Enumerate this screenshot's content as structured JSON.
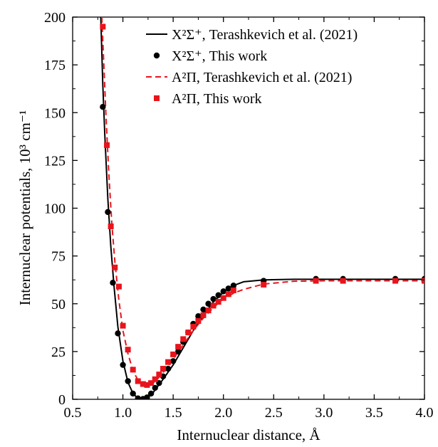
{
  "chart_data": {
    "type": "line",
    "xlabel": "Internuclear distance, Å",
    "ylabel": "Internuclear potentials, 10³ cm⁻¹",
    "xlim": [
      0.5,
      4.0
    ],
    "ylim": [
      0,
      200
    ],
    "x_ticks": [
      "0.5",
      "1.0",
      "1.5",
      "2.0",
      "2.5",
      "3.0",
      "3.5",
      "4.0"
    ],
    "y_ticks": [
      "0",
      "25",
      "50",
      "75",
      "100",
      "125",
      "150",
      "175",
      "200"
    ],
    "grid": false,
    "legend_position": "top-right",
    "colors": {
      "x_state": "#000000",
      "a_state": "#e8141c"
    },
    "series": [
      {
        "name": "X²Σ⁺, Terashkevich et al. (2021)",
        "style": "solid-line",
        "color": "#000000",
        "x": [
          0.78,
          0.8,
          0.82,
          0.85,
          0.88,
          0.91,
          0.95,
          1.0,
          1.05,
          1.1,
          1.15,
          1.2,
          1.25,
          1.3,
          1.35,
          1.4,
          1.5,
          1.6,
          1.7,
          1.8,
          1.9,
          2.0,
          2.1,
          2.2,
          2.4,
          2.7,
          3.0,
          3.5,
          4.0
        ],
        "y": [
          200,
          165,
          138,
          105,
          80,
          60,
          38,
          20,
          9,
          3,
          0.5,
          0,
          1,
          3.5,
          7,
          10.5,
          18,
          27,
          36,
          44,
          51,
          56,
          59.5,
          61.5,
          62.5,
          62.8,
          62.8,
          62.8,
          62.8
        ]
      },
      {
        "name": "X²Σ⁺, This work",
        "style": "circle-markers",
        "color": "#000000",
        "x": [
          0.8,
          0.85,
          0.9,
          0.95,
          1.0,
          1.05,
          1.1,
          1.15,
          1.2,
          1.24,
          1.28,
          1.32,
          1.36,
          1.4,
          1.45,
          1.5,
          1.55,
          1.6,
          1.65,
          1.7,
          1.75,
          1.8,
          1.85,
          1.9,
          1.95,
          2.0,
          2.05,
          2.1,
          2.4,
          2.92,
          3.19,
          3.71,
          4.0
        ],
        "y": [
          153,
          98,
          61,
          34.5,
          18,
          9.5,
          3,
          0.5,
          0.2,
          1,
          3,
          6,
          8.5,
          12,
          16,
          20,
          25,
          30,
          35,
          39.5,
          43.5,
          47,
          50,
          52.5,
          54.5,
          56.5,
          58,
          59.5,
          62,
          63,
          63,
          63,
          63
        ]
      },
      {
        "name": "A²Π, Terashkevich et al. (2021)",
        "style": "dashed-line",
        "color": "#e8141c",
        "x": [
          0.79,
          0.81,
          0.83,
          0.86,
          0.89,
          0.92,
          0.96,
          1.0,
          1.05,
          1.1,
          1.15,
          1.2,
          1.25,
          1.3,
          1.35,
          1.4,
          1.5,
          1.6,
          1.7,
          1.8,
          1.9,
          2.0,
          2.1,
          2.2,
          2.4,
          2.7,
          3.0,
          3.5,
          4.0
        ],
        "y": [
          200,
          175,
          150,
          118,
          92,
          72,
          52,
          36,
          24,
          15,
          10,
          8,
          7.5,
          8.5,
          11,
          14,
          21,
          28.5,
          36,
          42.5,
          48,
          52.5,
          55.5,
          57.5,
          60.3,
          61.8,
          62,
          62,
          62
        ]
      },
      {
        "name": "A²Π,  This work",
        "style": "square-markers",
        "color": "#e8141c",
        "x": [
          0.8,
          0.84,
          0.88,
          0.92,
          0.96,
          1.0,
          1.05,
          1.1,
          1.15,
          1.2,
          1.24,
          1.28,
          1.32,
          1.36,
          1.4,
          1.45,
          1.5,
          1.55,
          1.6,
          1.65,
          1.7,
          1.75,
          1.8,
          1.85,
          1.9,
          1.95,
          2.0,
          2.05,
          2.1,
          2.4,
          2.92,
          3.19,
          3.71,
          4.0
        ],
        "y": [
          195,
          133,
          90.5,
          69,
          59,
          38.5,
          26,
          15.5,
          9.5,
          8,
          7.5,
          8.5,
          10.5,
          13,
          16,
          19.5,
          23.5,
          27.5,
          31.5,
          35,
          38,
          41,
          44,
          46.5,
          49,
          51,
          53,
          55,
          57,
          60,
          62,
          62,
          62,
          62
        ]
      }
    ]
  }
}
